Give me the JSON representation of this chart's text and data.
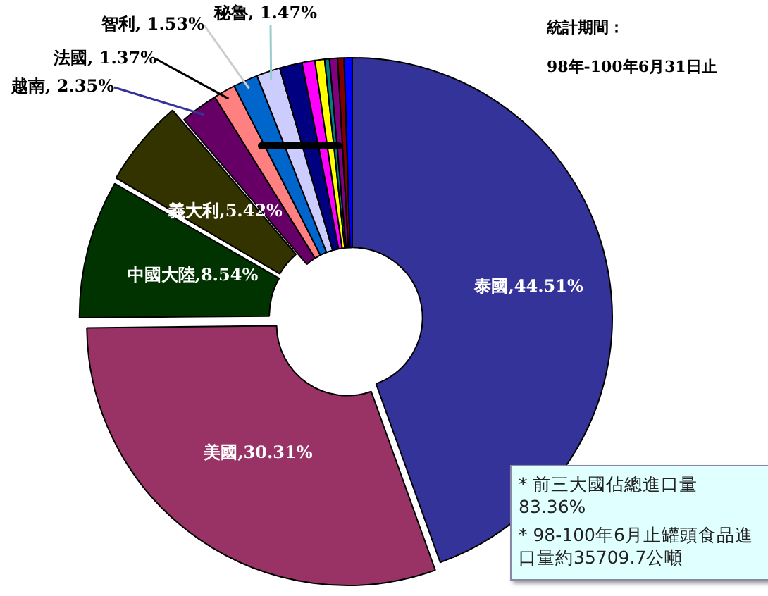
{
  "chart_data": {
    "type": "donut",
    "categories": [
      "泰國",
      "美國",
      "中國大陸",
      "義大利",
      "越南",
      "法國",
      "智利",
      "秘魯",
      null,
      null,
      null,
      null,
      null,
      null,
      null
    ],
    "values": [
      44.51,
      30.31,
      8.54,
      5.42,
      2.35,
      1.37,
      1.53,
      1.47,
      1.4,
      0.8,
      0.6,
      0.3,
      0.5,
      0.4,
      0.5
    ],
    "value_labels": [
      "44.51%",
      "30.31%",
      "8.54%",
      "5.42%",
      "2.35%",
      "1.37%",
      "1.53%",
      "1.47%",
      null,
      null,
      null,
      null,
      null,
      null,
      null
    ],
    "colors": [
      "#333399",
      "#993366",
      "#003300",
      "#333300",
      "#660066",
      "#ff8080",
      "#0066cc",
      "#ccccff",
      "#000080",
      "#ff00ff",
      "#ffff00",
      "#008080",
      "#800080",
      "#800000",
      "#0000ff"
    ],
    "legend": false,
    "annotations": [
      "統計期間：",
      "98年-100年6月31日止",
      "* 前三大國佔總進口量\n83.36%",
      "* 98-100年6月止罐頭食品進口量約35709.7公噸"
    ]
  }
}
